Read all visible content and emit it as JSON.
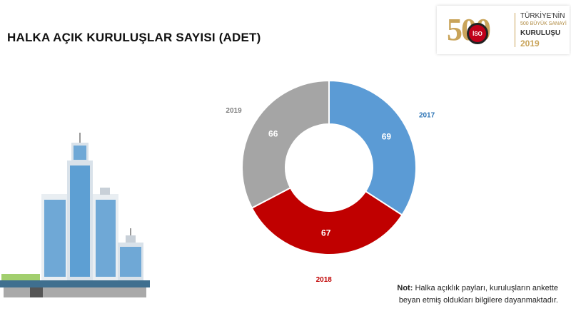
{
  "page": {
    "title": "HALKA AÇIK KURULUŞLAR SAYISI (ADET)",
    "note_label": "Not:",
    "note_line1": "Halka açıklık payları, kuruluşların ankette",
    "note_line2": "beyan etmiş oldukları bilgilere dayanmaktadır."
  },
  "logo": {
    "number": "500",
    "badge": "İSO",
    "line1": "TÜRKİYE'NİN",
    "line2": "500 BÜYÜK SANAYİ",
    "line3": "KURULUŞU",
    "line4": "2019",
    "icon": "iso-500-logo-icon"
  },
  "colors": {
    "c2017": "#5b9bd5",
    "c2018": "#c00000",
    "c2019": "#a5a5a5"
  },
  "chart_data": {
    "type": "pie",
    "variant": "donut",
    "title": "",
    "categories": [
      "2017",
      "2018",
      "2019"
    ],
    "values": [
      69,
      67,
      66
    ],
    "colors": [
      "#5b9bd5",
      "#c00000",
      "#a5a5a5"
    ],
    "label_colors": [
      "#2e75b6",
      "#c00000",
      "#7f7f7f"
    ]
  },
  "illustration": {
    "icon": "city-buildings-icon"
  }
}
